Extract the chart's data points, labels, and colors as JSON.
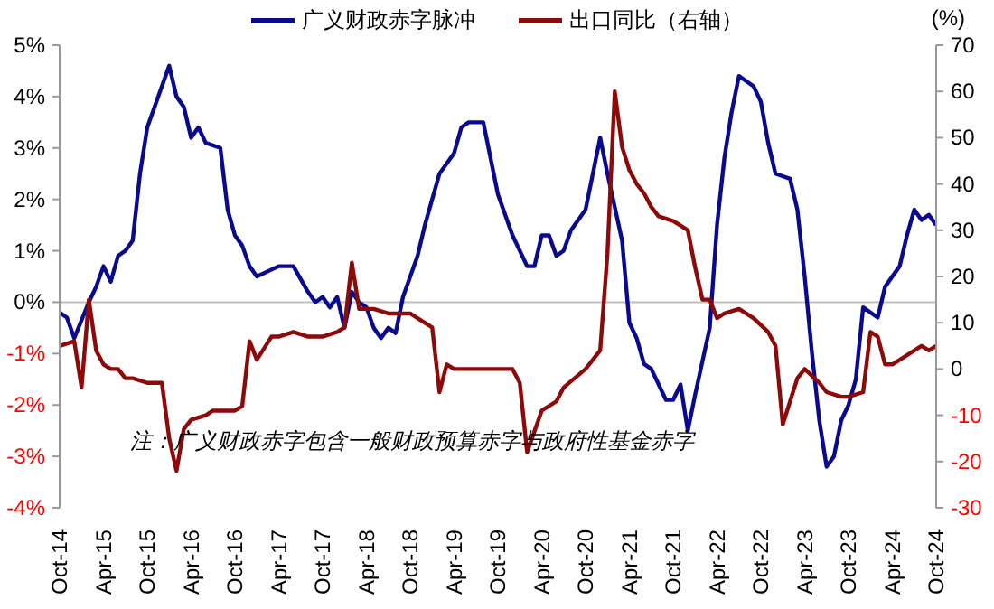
{
  "chart_data": {
    "type": "line",
    "y2label": "(%)",
    "legend": "top",
    "marker": "none",
    "line_style": "solid",
    "annotations": [
      "注：广义财政赤字包含一般财政预算赤字与政府性基金赤字"
    ],
    "ref_lines": [
      {
        "axis": "y",
        "value": 0,
        "color": "#bfbfbf"
      }
    ],
    "xlim": [
      "2014-10",
      "2024-10"
    ],
    "xticks": [
      {
        "value": "2014-10",
        "label": "Oct-14"
      },
      {
        "value": "2015-04",
        "label": "Apr-15"
      },
      {
        "value": "2015-10",
        "label": "Oct-15"
      },
      {
        "value": "2016-04",
        "label": "Apr-16"
      },
      {
        "value": "2016-10",
        "label": "Oct-16"
      },
      {
        "value": "2017-04",
        "label": "Apr-17"
      },
      {
        "value": "2017-10",
        "label": "Oct-17"
      },
      {
        "value": "2018-04",
        "label": "Apr-18"
      },
      {
        "value": "2018-10",
        "label": "Oct-18"
      },
      {
        "value": "2019-04",
        "label": "Apr-19"
      },
      {
        "value": "2019-10",
        "label": "Oct-19"
      },
      {
        "value": "2020-04",
        "label": "Apr-20"
      },
      {
        "value": "2020-10",
        "label": "Oct-20"
      },
      {
        "value": "2021-04",
        "label": "Apr-21"
      },
      {
        "value": "2021-10",
        "label": "Oct-21"
      },
      {
        "value": "2022-04",
        "label": "Apr-22"
      },
      {
        "value": "2022-10",
        "label": "Oct-22"
      },
      {
        "value": "2023-04",
        "label": "Apr-23"
      },
      {
        "value": "2023-10",
        "label": "Oct-23"
      },
      {
        "value": "2024-04",
        "label": "Apr-24"
      },
      {
        "value": "2024-10",
        "label": "Oct-24"
      }
    ],
    "ylim": [
      -4,
      5
    ],
    "yticks": [
      {
        "value": -4,
        "label": "-4%"
      },
      {
        "value": -3,
        "label": "-3%"
      },
      {
        "value": -2,
        "label": "-2%"
      },
      {
        "value": -1,
        "label": "-1%"
      },
      {
        "value": 0,
        "label": "0%"
      },
      {
        "value": 1,
        "label": "1%"
      },
      {
        "value": 2,
        "label": "2%"
      },
      {
        "value": 3,
        "label": "3%"
      },
      {
        "value": 4,
        "label": "4%"
      },
      {
        "value": 5,
        "label": "5%"
      }
    ],
    "y2lim": [
      -30,
      70
    ],
    "y2ticks": [
      -30,
      -20,
      -10,
      0,
      10,
      20,
      30,
      40,
      50,
      60,
      70
    ],
    "series": [
      {
        "name": "广义财政赤字脉冲",
        "color": "#0a0a8c",
        "x": [
          "2014-10",
          "2014-11",
          "2014-12",
          "2015-02",
          "2015-03",
          "2015-04",
          "2015-05",
          "2015-06",
          "2015-07",
          "2015-08",
          "2015-09",
          "2015-10",
          "2016-01",
          "2016-02",
          "2016-03",
          "2016-04",
          "2016-05",
          "2016-06",
          "2016-08",
          "2016-09",
          "2016-10",
          "2016-11",
          "2016-12",
          "2017-01",
          "2017-04",
          "2017-06",
          "2017-08",
          "2017-09",
          "2017-10",
          "2017-11",
          "2017-12",
          "2018-01",
          "2018-02",
          "2018-03",
          "2018-04",
          "2018-05",
          "2018-06",
          "2018-07",
          "2018-08",
          "2018-09",
          "2018-10",
          "2018-11",
          "2018-12",
          "2019-02",
          "2019-04",
          "2019-05",
          "2019-06",
          "2019-08",
          "2019-10",
          "2019-12",
          "2020-02",
          "2020-03",
          "2020-04",
          "2020-05",
          "2020-06",
          "2020-07",
          "2020-08",
          "2020-10",
          "2020-12",
          "2021-01",
          "2021-03",
          "2021-04",
          "2021-05",
          "2021-06",
          "2021-07",
          "2021-09",
          "2021-10",
          "2021-11",
          "2021-12",
          "2022-01",
          "2022-03",
          "2022-04",
          "2022-05",
          "2022-06",
          "2022-07",
          "2022-09",
          "2022-10",
          "2022-11",
          "2022-12",
          "2023-02",
          "2023-03",
          "2023-04",
          "2023-05",
          "2023-06",
          "2023-07",
          "2023-08",
          "2023-09",
          "2023-10",
          "2023-11",
          "2023-12",
          "2024-01",
          "2024-02",
          "2024-03",
          "2024-05",
          "2024-06",
          "2024-07",
          "2024-08",
          "2024-09",
          "2024-10"
        ],
        "values": [
          -0.2,
          -0.3,
          -0.7,
          0,
          0.3,
          0.7,
          0.4,
          0.9,
          1.0,
          1.2,
          2.5,
          3.4,
          4.6,
          4.0,
          3.8,
          3.2,
          3.4,
          3.1,
          3.0,
          1.8,
          1.3,
          1.1,
          0.7,
          0.5,
          0.7,
          0.7,
          0.2,
          0.0,
          0.1,
          -0.1,
          0.1,
          -0.5,
          0.2,
          0,
          -0.1,
          -0.5,
          -0.7,
          -0.5,
          -0.6,
          0.1,
          0.5,
          0.9,
          1.5,
          2.5,
          2.9,
          3.4,
          3.5,
          3.5,
          2.1,
          1.3,
          0.7,
          0.7,
          1.3,
          1.3,
          0.9,
          1.0,
          1.4,
          1.8,
          3.2,
          2.5,
          1.2,
          -0.4,
          -0.7,
          -1.2,
          -1.3,
          -1.9,
          -1.9,
          -1.6,
          -2.5,
          -1.8,
          -0.5,
          1.5,
          2.8,
          3.7,
          4.4,
          4.2,
          3.9,
          3.1,
          2.5,
          2.4,
          1.8,
          0.5,
          -1.0,
          -2.3,
          -3.2,
          -3.0,
          -2.3,
          -2.0,
          -1.5,
          -0.1,
          -0.2,
          -0.3,
          0.3,
          0.7,
          1.3,
          1.8,
          1.6,
          1.7,
          1.5
        ]
      },
      {
        "name": "出口同比（右轴）",
        "color": "#8b0a0a",
        "axis": "y2",
        "x": [
          "2014-10",
          "2014-12",
          "2015-01",
          "2015-02",
          "2015-03",
          "2015-04",
          "2015-05",
          "2015-06",
          "2015-07",
          "2015-08",
          "2015-10",
          "2015-12",
          "2016-01",
          "2016-02",
          "2016-03",
          "2016-04",
          "2016-06",
          "2016-07",
          "2016-09",
          "2016-10",
          "2016-11",
          "2016-12",
          "2017-01",
          "2017-03",
          "2017-04",
          "2017-06",
          "2017-08",
          "2017-10",
          "2017-12",
          "2018-01",
          "2018-02",
          "2018-03",
          "2018-05",
          "2018-07",
          "2018-10",
          "2018-11",
          "2019-01",
          "2019-02",
          "2019-03",
          "2019-04",
          "2019-06",
          "2019-08",
          "2019-10",
          "2019-12",
          "2020-01",
          "2020-02",
          "2020-04",
          "2020-06",
          "2020-07",
          "2020-10",
          "2020-12",
          "2021-01",
          "2021-02",
          "2021-03",
          "2021-04",
          "2021-05",
          "2021-06",
          "2021-07",
          "2021-08",
          "2021-10",
          "2021-11",
          "2021-12",
          "2022-01",
          "2022-02",
          "2022-03",
          "2022-04",
          "2022-05",
          "2022-07",
          "2022-09",
          "2022-11",
          "2022-12",
          "2023-01",
          "2023-02",
          "2023-03",
          "2023-04",
          "2023-06",
          "2023-07",
          "2023-09",
          "2023-10",
          "2023-12",
          "2024-01",
          "2024-02",
          "2024-03",
          "2024-04",
          "2024-06",
          "2024-08",
          "2024-09",
          "2024-10"
        ],
        "values": [
          5,
          6,
          -4,
          15,
          4,
          1,
          0,
          0,
          -2,
          -2,
          -3,
          -3,
          -15,
          -22,
          -13,
          -11,
          -10,
          -9,
          -9,
          -9,
          -8,
          6,
          2,
          7,
          7,
          8,
          7,
          7,
          8,
          9,
          23,
          13,
          13,
          12,
          12,
          11,
          9,
          -5,
          1,
          0,
          0,
          0,
          0,
          0,
          -3,
          -18,
          -9,
          -7,
          -4,
          0,
          4,
          25,
          60,
          48,
          43,
          40,
          38,
          35,
          33,
          32,
          31,
          30,
          22,
          15,
          15,
          11,
          12,
          13,
          11,
          8,
          5,
          -12,
          -7,
          -2,
          0,
          -3,
          -5,
          -6,
          -6,
          -5,
          8,
          7,
          1,
          1,
          3,
          5,
          4,
          5
        ]
      }
    ]
  }
}
